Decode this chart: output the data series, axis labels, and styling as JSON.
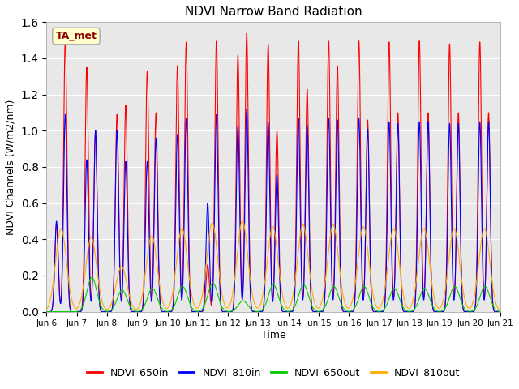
{
  "title": "NDVI Narrow Band Radiation",
  "xlabel": "Time",
  "ylabel": "NDVI Channels (W/m2/nm)",
  "annotation": "TA_met",
  "ylim": [
    0.0,
    1.6
  ],
  "legend_labels": [
    "NDVI_650in",
    "NDVI_810in",
    "NDVI_650out",
    "NDVI_810out"
  ],
  "legend_colors": [
    "#ff0000",
    "#0000ff",
    "#00cc00",
    "#ffaa00"
  ],
  "background_color": "#e8e8e8",
  "line_colors": {
    "NDVI_650in": "#ff0000",
    "NDVI_810in": "#0000ff",
    "NDVI_650out": "#00cc00",
    "NDVI_810out": "#ffaa00"
  },
  "tick_labels": [
    "Jun 6",
    "Jun 7",
    "Jun 8",
    "Jun 9",
    "Jun 10",
    "Jun 11",
    "Jun 12",
    "Jun 13",
    "Jun 14",
    "Jun 15",
    "Jun 16",
    "Jun 17",
    "Jun 18",
    "Jun 19",
    "Jun 20",
    "Jun 21"
  ],
  "figsize": [
    6.4,
    4.8
  ],
  "dpi": 100
}
